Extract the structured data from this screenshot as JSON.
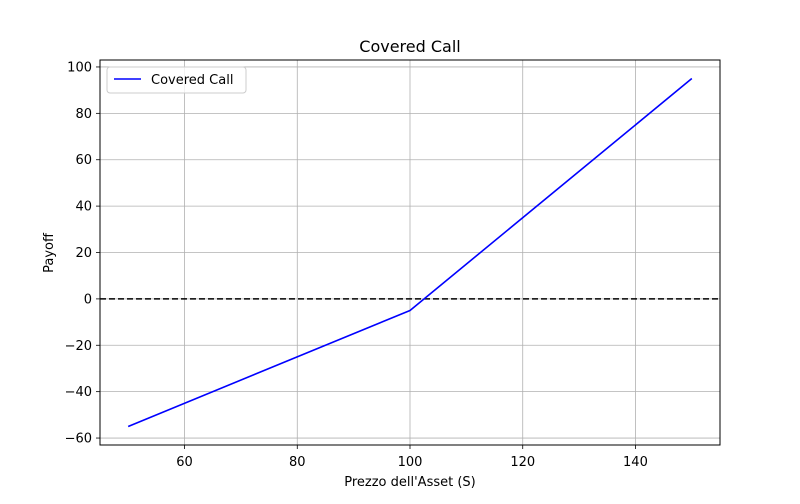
{
  "chart_data": {
    "type": "line",
    "title": "Covered Call",
    "xlabel": "Prezzo dell'Asset (S)",
    "ylabel": "Payoff",
    "xlim": [
      45,
      155
    ],
    "ylim": [
      -63,
      103
    ],
    "x_ticks": [
      60,
      80,
      100,
      120,
      140
    ],
    "y_ticks": [
      -60,
      -40,
      -20,
      0,
      20,
      40,
      60,
      80,
      100
    ],
    "x_tick_labels": [
      "60",
      "80",
      "100",
      "120",
      "140"
    ],
    "y_tick_labels": [
      "−60",
      "−40",
      "−20",
      "0",
      "20",
      "40",
      "60",
      "80",
      "100"
    ],
    "grid": true,
    "legend_position": "top-left",
    "series": [
      {
        "name": "Covered Call",
        "color": "#0000ff",
        "style": "solid",
        "x": [
          50,
          100,
          150
        ],
        "y": [
          -55,
          -5,
          95
        ]
      }
    ],
    "reference_lines": [
      {
        "axis": "y",
        "value": 0,
        "color": "#000000",
        "style": "dashed"
      }
    ]
  }
}
